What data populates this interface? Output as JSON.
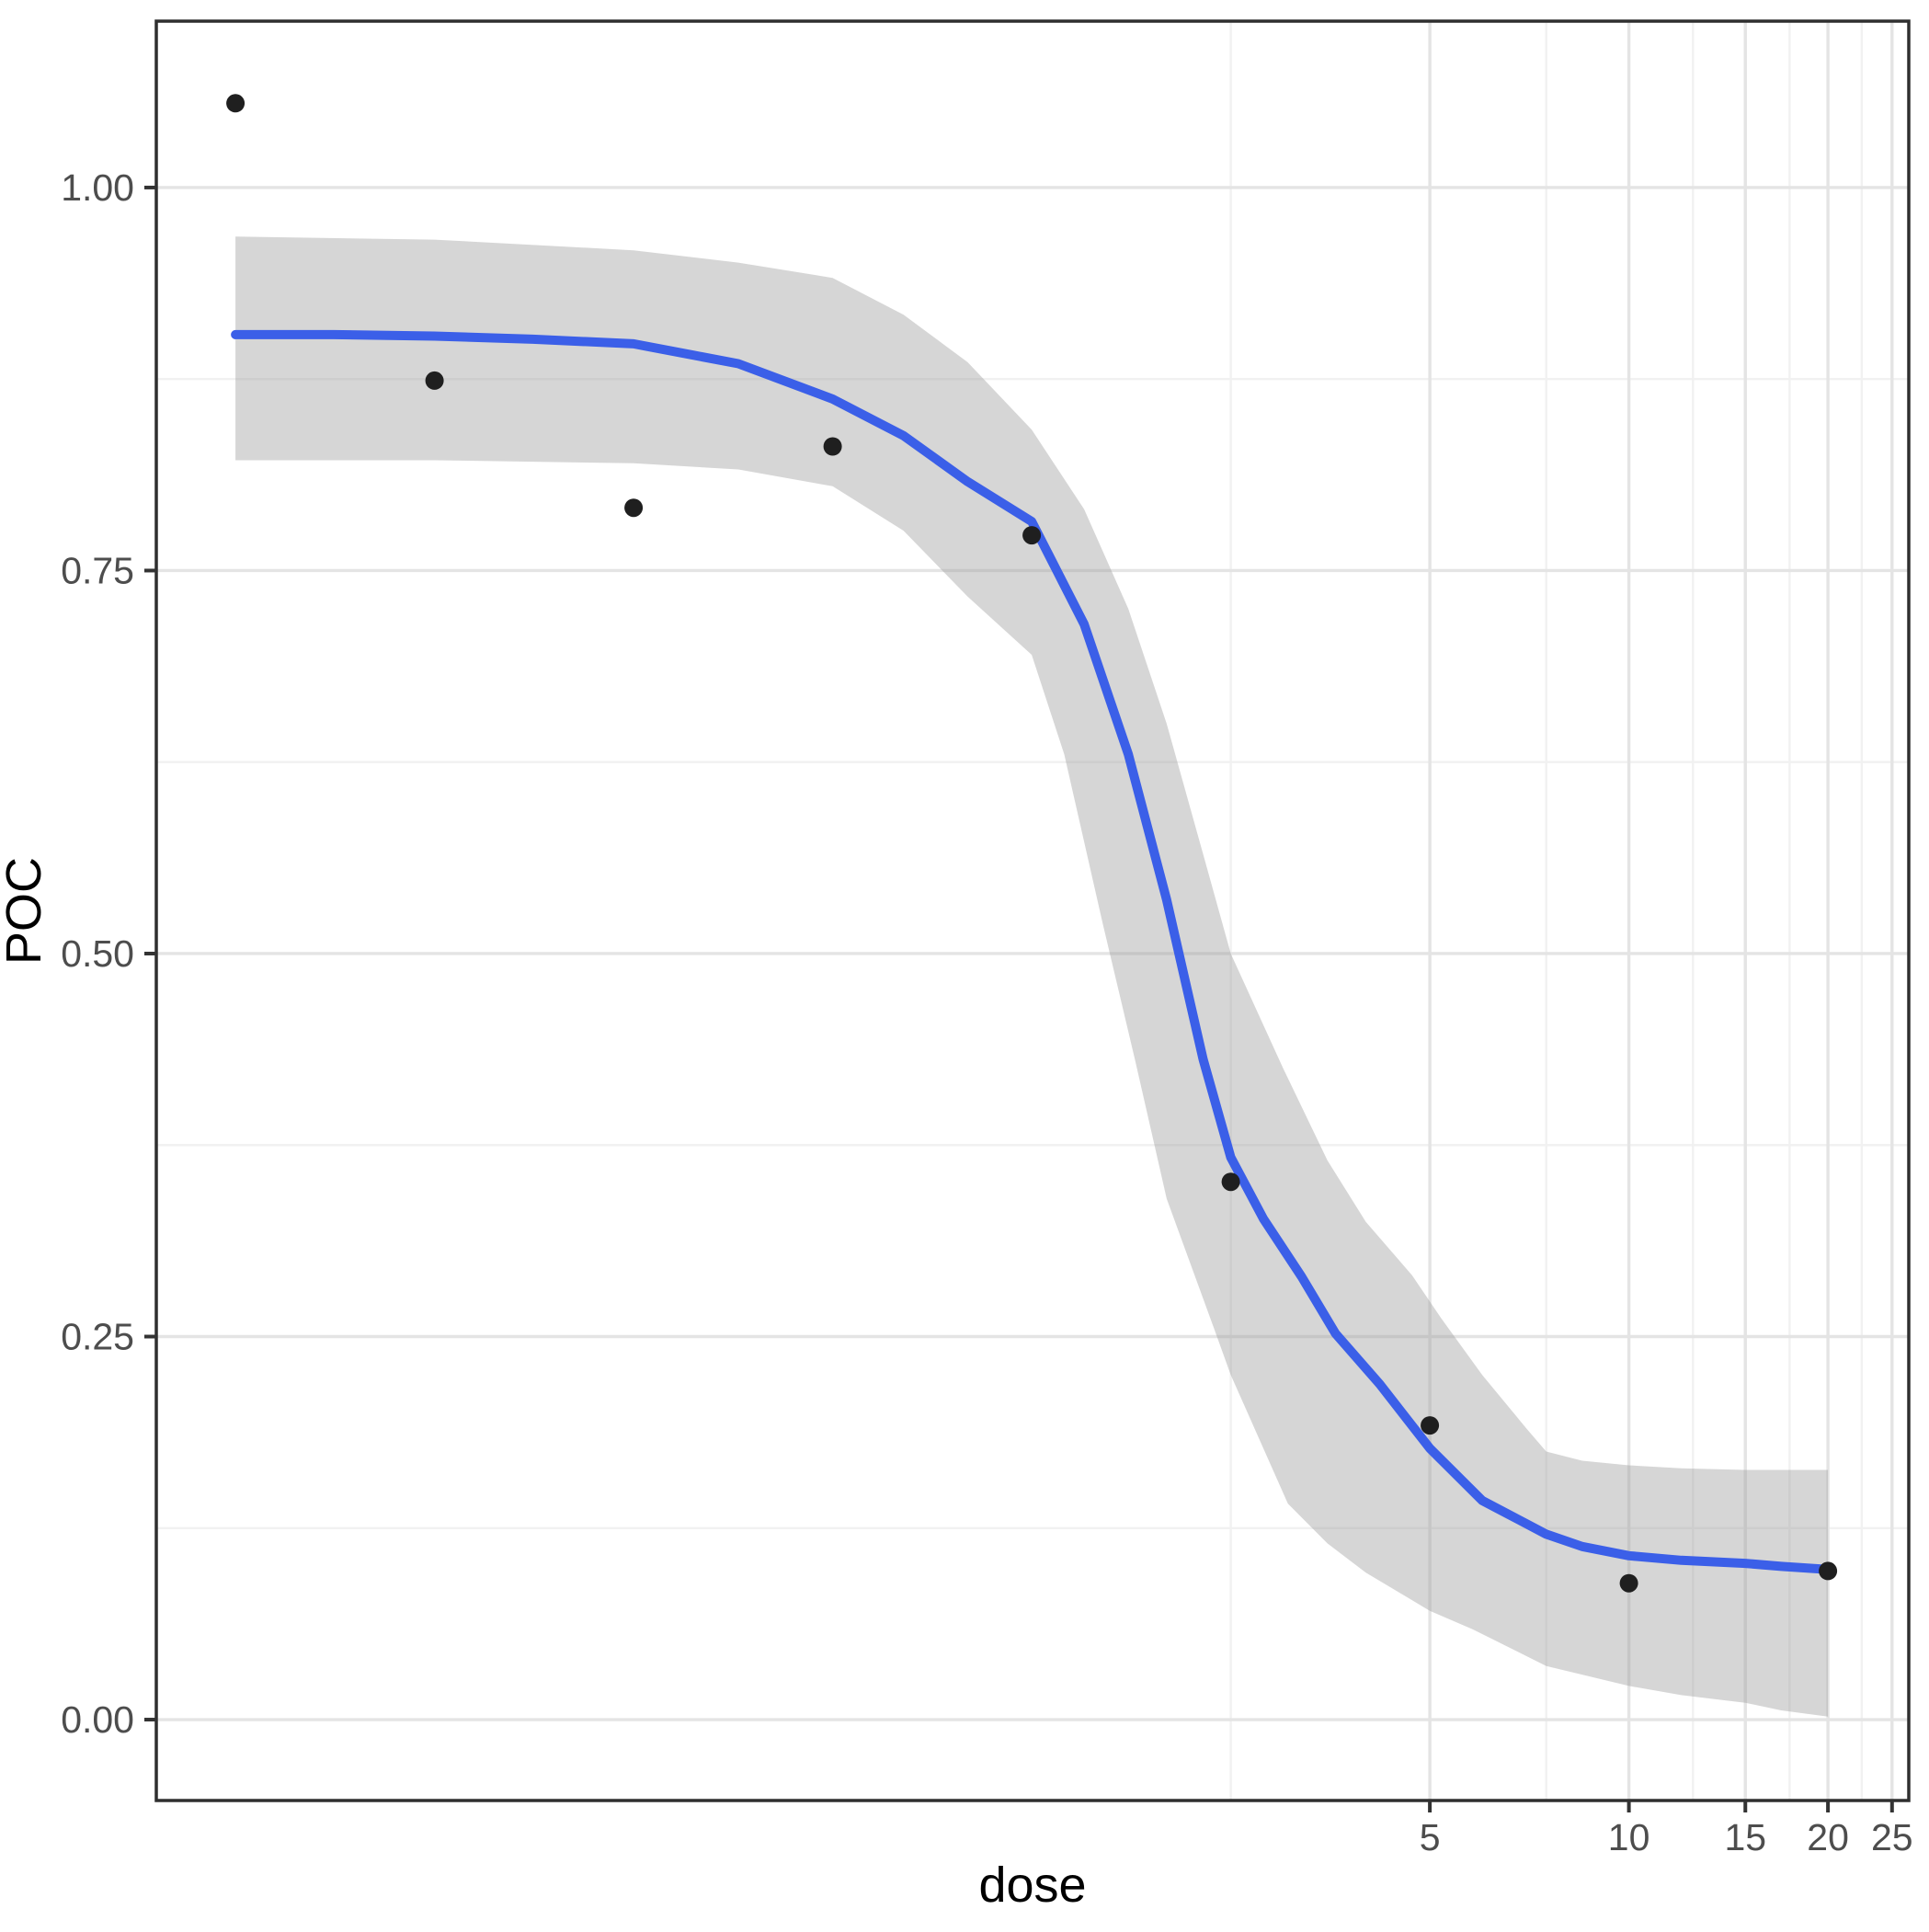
{
  "chart_data": {
    "type": "scatter",
    "title": "",
    "xlabel": "dose",
    "ylabel": "POC",
    "legend": "none",
    "grid": true,
    "x_axis": {
      "scale": "log10",
      "breaks": [
        5,
        10,
        15,
        20,
        25
      ],
      "labels": [
        "5",
        "10",
        "15",
        "20",
        "25"
      ],
      "minor_breaks": [
        2.5,
        7.5,
        12.5,
        17.5,
        22.5
      ],
      "domain": [
        0.0593,
        26.5
      ]
    },
    "y_axis": {
      "scale": "linear",
      "breaks": [
        0.0,
        0.25,
        0.5,
        0.75,
        1.0
      ],
      "labels": [
        "0.00",
        "0.25",
        "0.50",
        "0.75",
        "1.00"
      ],
      "minor_breaks": [
        0.125,
        0.375,
        0.625,
        0.875
      ],
      "domain": [
        -0.0528,
        1.1086
      ]
    },
    "points": [
      {
        "dose": 0.078125,
        "poc": 1.055
      },
      {
        "dose": 0.15625,
        "poc": 0.874
      },
      {
        "dose": 0.3125,
        "poc": 0.791
      },
      {
        "dose": 0.625,
        "poc": 0.831
      },
      {
        "dose": 1.25,
        "poc": 0.773
      },
      {
        "dose": 2.5,
        "poc": 0.351
      },
      {
        "dose": 5,
        "poc": 0.192
      },
      {
        "dose": 10,
        "poc": 0.089
      },
      {
        "dose": 20,
        "poc": 0.097
      }
    ],
    "fit_line": [
      [
        0.078125,
        0.904
      ],
      [
        0.11,
        0.904
      ],
      [
        0.15625,
        0.903
      ],
      [
        0.22,
        0.901
      ],
      [
        0.3125,
        0.898
      ],
      [
        0.45,
        0.885
      ],
      [
        0.625,
        0.862
      ],
      [
        0.8,
        0.838
      ],
      [
        1.0,
        0.808
      ],
      [
        1.25,
        0.782
      ],
      [
        1.5,
        0.715
      ],
      [
        1.75,
        0.63
      ],
      [
        2.0,
        0.535
      ],
      [
        2.27,
        0.431
      ],
      [
        2.5,
        0.367
      ],
      [
        2.8,
        0.327
      ],
      [
        3.2,
        0.289
      ],
      [
        3.6,
        0.252
      ],
      [
        4.2,
        0.219
      ],
      [
        5.0,
        0.177
      ],
      [
        6.0,
        0.143
      ],
      [
        7.5,
        0.121
      ],
      [
        8.5,
        0.113
      ],
      [
        10,
        0.107
      ],
      [
        12,
        0.104
      ],
      [
        15,
        0.102
      ],
      [
        17,
        0.1
      ],
      [
        20,
        0.098
      ]
    ],
    "ribbon_upper": [
      [
        0.078125,
        0.968
      ],
      [
        0.15625,
        0.966
      ],
      [
        0.3125,
        0.959
      ],
      [
        0.45,
        0.951
      ],
      [
        0.625,
        0.941
      ],
      [
        0.8,
        0.917
      ],
      [
        1.0,
        0.886
      ],
      [
        1.25,
        0.842
      ],
      [
        1.5,
        0.79
      ],
      [
        1.75,
        0.725
      ],
      [
        2.0,
        0.65
      ],
      [
        2.27,
        0.565
      ],
      [
        2.5,
        0.5
      ],
      [
        3.0,
        0.425
      ],
      [
        3.5,
        0.365
      ],
      [
        4.0,
        0.325
      ],
      [
        4.7,
        0.29
      ],
      [
        5.2,
        0.262
      ],
      [
        6.0,
        0.225
      ],
      [
        7.0,
        0.19
      ],
      [
        7.5,
        0.175
      ],
      [
        8.5,
        0.169
      ],
      [
        10,
        0.166
      ],
      [
        12,
        0.164
      ],
      [
        15,
        0.163
      ],
      [
        20,
        0.163
      ]
    ],
    "ribbon_lower": [
      [
        0.078125,
        0.822
      ],
      [
        0.15625,
        0.822
      ],
      [
        0.3125,
        0.82
      ],
      [
        0.45,
        0.816
      ],
      [
        0.625,
        0.805
      ],
      [
        0.8,
        0.776
      ],
      [
        1.0,
        0.733
      ],
      [
        1.25,
        0.695
      ],
      [
        1.4,
        0.63
      ],
      [
        1.6,
        0.52
      ],
      [
        1.79,
        0.431
      ],
      [
        2.0,
        0.34
      ],
      [
        2.36,
        0.255
      ],
      [
        2.5,
        0.225
      ],
      [
        3.05,
        0.141
      ],
      [
        3.5,
        0.115
      ],
      [
        4.0,
        0.096
      ],
      [
        5.0,
        0.071
      ],
      [
        5.8,
        0.059
      ],
      [
        7.5,
        0.035
      ],
      [
        10,
        0.022
      ],
      [
        12,
        0.016
      ],
      [
        15,
        0.011
      ],
      [
        17,
        0.006
      ],
      [
        20,
        0.002
      ]
    ]
  },
  "style": {
    "background": "#FFFFFF",
    "panel_background": "#FFFFFF",
    "panel_border": "#2F2F2F",
    "grid_major": "#E4E4E4",
    "grid_minor": "#F1F1F1",
    "ribbon_fill_rgba": "rgba(153,153,153,0.4)",
    "fit_color": "#3B5FE8",
    "point_color": "#1F1F1F",
    "tick_color": "#333333",
    "tick_label_color": "#4D4D4D",
    "axis_title_color": "#000000"
  }
}
